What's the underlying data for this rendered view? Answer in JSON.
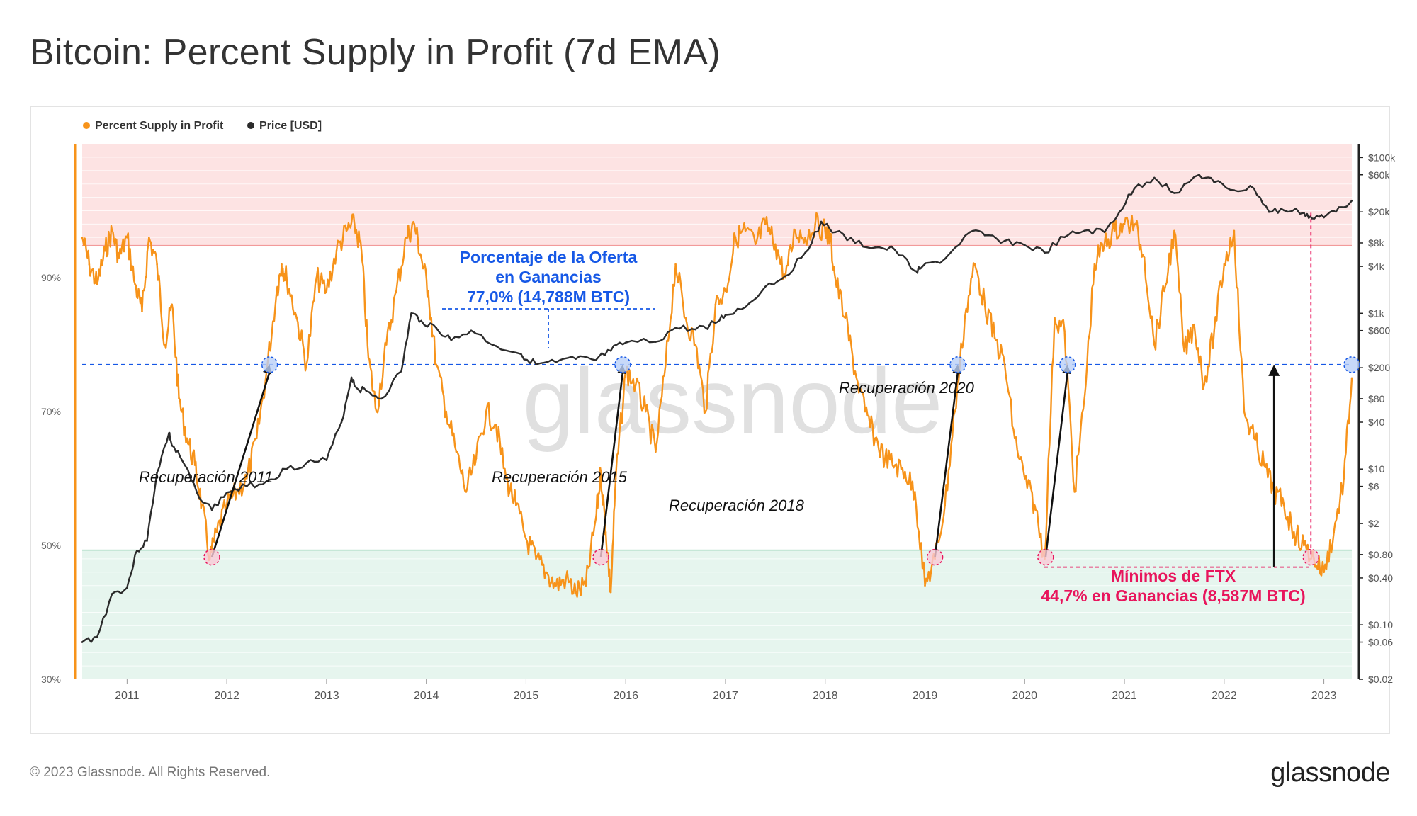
{
  "header": {
    "title": "Bitcoin: Percent Supply in Profit (7d EMA)"
  },
  "footer": {
    "copyright": "© 2023 Glassnode. All Rights Reserved.",
    "logo": "glassnode"
  },
  "watermark": "glassnode",
  "colors": {
    "supply": "#f7931a",
    "price": "#2b2b2b",
    "blue": "#1658e6",
    "pink": "#e8155c",
    "zone_high": "#fde3e3",
    "zone_low": "#e6f5ee"
  },
  "chart_data": {
    "type": "line",
    "title": "Bitcoin: Percent Supply in Profit (7d EMA)",
    "legend": [
      "Percent Supply in Profit",
      "Price [USD]"
    ],
    "legend_position": "top-left",
    "x_range": [
      2010.55,
      2023.28
    ],
    "x_ticks": [
      {
        "value": 2011,
        "label": "2011"
      },
      {
        "value": 2012,
        "label": "2012"
      },
      {
        "value": 2013,
        "label": "2013"
      },
      {
        "value": 2014,
        "label": "2014"
      },
      {
        "value": 2015,
        "label": "2015"
      },
      {
        "value": 2016,
        "label": "2016"
      },
      {
        "value": 2017,
        "label": "2017"
      },
      {
        "value": 2018,
        "label": "2018"
      },
      {
        "value": 2019,
        "label": "2019"
      },
      {
        "value": 2020,
        "label": "2020"
      },
      {
        "value": 2021,
        "label": "2021"
      },
      {
        "value": 2022,
        "label": "2022"
      },
      {
        "value": 2023,
        "label": "2023"
      }
    ],
    "left_axis": {
      "ylim": [
        30,
        110
      ],
      "ticks": [
        {
          "value": 90,
          "label": "90%"
        },
        {
          "value": 70,
          "label": "70%"
        },
        {
          "value": 50,
          "label": "50%"
        },
        {
          "value": 30,
          "label": "30%"
        }
      ]
    },
    "right_axis": {
      "scale": "log",
      "ylim": [
        0.02,
        150000
      ],
      "ticks": [
        {
          "value": 100000,
          "label": "$100k"
        },
        {
          "value": 60000,
          "label": "$60k"
        },
        {
          "value": 20000,
          "label": "$20k"
        },
        {
          "value": 8000,
          "label": "$8k"
        },
        {
          "value": 4000,
          "label": "$4k"
        },
        {
          "value": 1000,
          "label": "$1k"
        },
        {
          "value": 600,
          "label": "$600"
        },
        {
          "value": 200,
          "label": "$200"
        },
        {
          "value": 80,
          "label": "$80"
        },
        {
          "value": 40,
          "label": "$40"
        },
        {
          "value": 10,
          "label": "$10"
        },
        {
          "value": 6,
          "label": "$6"
        },
        {
          "value": 2,
          "label": "$2"
        },
        {
          "value": 0.8,
          "label": "$0.80"
        },
        {
          "value": 0.4,
          "label": "$0.40"
        },
        {
          "value": 0.1,
          "label": "$0.10"
        },
        {
          "value": 0.06,
          "label": "$0.06"
        },
        {
          "value": 0.02,
          "label": "$0.02"
        }
      ]
    },
    "zones": [
      {
        "name": "high",
        "from": 94.8,
        "to": 110
      },
      {
        "name": "low",
        "from": 30,
        "to": 49.3
      }
    ],
    "reference_line": {
      "value": 77.0,
      "label": "77,0%"
    },
    "series": [
      {
        "name": "Percent Supply in Profit",
        "axis": "left",
        "x": [
          2010.55,
          2010.62,
          2010.7,
          2010.78,
          2010.85,
          2010.92,
          2011.0,
          2011.08,
          2011.15,
          2011.22,
          2011.3,
          2011.38,
          2011.45,
          2011.52,
          2011.6,
          2011.68,
          2011.75,
          2011.83,
          2011.9,
          2012.0,
          2012.1,
          2012.2,
          2012.3,
          2012.4,
          2012.5,
          2012.55,
          2012.6,
          2012.7,
          2012.8,
          2012.9,
          2013.0,
          2013.1,
          2013.2,
          2013.28,
          2013.35,
          2013.42,
          2013.5,
          2013.6,
          2013.7,
          2013.8,
          2013.88,
          2013.95,
          2014.02,
          2014.1,
          2014.2,
          2014.3,
          2014.4,
          2014.5,
          2014.6,
          2014.7,
          2014.8,
          2014.9,
          2015.0,
          2015.1,
          2015.2,
          2015.3,
          2015.4,
          2015.5,
          2015.6,
          2015.7,
          2015.75,
          2015.8,
          2015.85,
          2015.9,
          2016.0,
          2016.1,
          2016.2,
          2016.3,
          2016.4,
          2016.5,
          2016.6,
          2016.7,
          2016.8,
          2016.9,
          2017.0,
          2017.1,
          2017.2,
          2017.3,
          2017.4,
          2017.5,
          2017.6,
          2017.7,
          2017.8,
          2017.9,
          2018.0,
          2018.05,
          2018.1,
          2018.2,
          2018.3,
          2018.4,
          2018.5,
          2018.6,
          2018.7,
          2018.8,
          2018.9,
          2019.0,
          2019.1,
          2019.2,
          2019.3,
          2019.4,
          2019.5,
          2019.6,
          2019.7,
          2019.8,
          2019.9,
          2020.0,
          2020.1,
          2020.2,
          2020.3,
          2020.4,
          2020.5,
          2020.6,
          2020.7,
          2020.8,
          2020.9,
          2021.0,
          2021.1,
          2021.2,
          2021.3,
          2021.4,
          2021.5,
          2021.6,
          2021.7,
          2021.8,
          2021.9,
          2022.0,
          2022.1,
          2022.2,
          2022.3,
          2022.4,
          2022.5,
          2022.6,
          2022.7,
          2022.8,
          2022.9,
          2023.0,
          2023.1,
          2023.2,
          2023.28
        ],
        "values": [
          96,
          92,
          89,
          94,
          97,
          93,
          96,
          89,
          85,
          96,
          92,
          80,
          86,
          72,
          66,
          62,
          56,
          48,
          52,
          56,
          58,
          60,
          66,
          76,
          88,
          92,
          90,
          84,
          77,
          90,
          88,
          94,
          97,
          98,
          94,
          78,
          70,
          80,
          88,
          96,
          98,
          93,
          88,
          77,
          70,
          64,
          58,
          63,
          70,
          68,
          60,
          56,
          51,
          48,
          46,
          44,
          45,
          43,
          44,
          54,
          61,
          52,
          43,
          60,
          76,
          74,
          70,
          64,
          77,
          92,
          84,
          80,
          70,
          86,
          88,
          96,
          97,
          95,
          98,
          95,
          90,
          97,
          96,
          98,
          97,
          96,
          90,
          84,
          76,
          70,
          66,
          63,
          62,
          61,
          58,
          44,
          48,
          56,
          70,
          84,
          92,
          86,
          81,
          77,
          66,
          60,
          56,
          48,
          84,
          82,
          58,
          72,
          92,
          95,
          97,
          98,
          98,
          93,
          80,
          88,
          97,
          79,
          83,
          74,
          82,
          92,
          97,
          70,
          66,
          62,
          58,
          56,
          52,
          50,
          48,
          46,
          52,
          60,
          75
        ],
        "min_point": {
          "x": 2022.87,
          "value": 44.7
        },
        "color": "#f7931a"
      },
      {
        "name": "Price [USD]",
        "axis": "right",
        "x": [
          2010.55,
          2010.7,
          2010.85,
          2011.0,
          2011.1,
          2011.2,
          2011.3,
          2011.42,
          2011.45,
          2011.55,
          2011.7,
          2011.85,
          2012.0,
          2012.2,
          2012.4,
          2012.6,
          2012.8,
          2013.0,
          2013.15,
          2013.25,
          2013.3,
          2013.4,
          2013.55,
          2013.75,
          2013.85,
          2013.95,
          2014.1,
          2014.25,
          2014.45,
          2014.7,
          2014.95,
          2015.1,
          2015.3,
          2015.5,
          2015.7,
          2015.85,
          2016.0,
          2016.3,
          2016.5,
          2016.7,
          2016.9,
          2017.0,
          2017.2,
          2017.4,
          2017.6,
          2017.8,
          2017.96,
          2018.1,
          2018.3,
          2018.5,
          2018.7,
          2018.9,
          2018.96,
          2019.2,
          2019.45,
          2019.6,
          2019.8,
          2020.0,
          2020.2,
          2020.4,
          2020.6,
          2020.8,
          2020.95,
          2021.1,
          2021.3,
          2021.5,
          2021.75,
          2021.9,
          2022.1,
          2022.3,
          2022.45,
          2022.6,
          2022.8,
          2022.88,
          2023.0,
          2023.15,
          2023.28
        ],
        "values": [
          0.06,
          0.07,
          0.25,
          0.3,
          0.9,
          1.2,
          9,
          29,
          20,
          13,
          5,
          3,
          5,
          6,
          7,
          10,
          12,
          13,
          40,
          150,
          110,
          100,
          80,
          180,
          1000,
          800,
          650,
          450,
          600,
          380,
          300,
          220,
          235,
          260,
          250,
          330,
          420,
          430,
          650,
          620,
          750,
          950,
          1200,
          2200,
          3000,
          6000,
          15000,
          11000,
          8000,
          7000,
          6500,
          3500,
          3800,
          5000,
          11000,
          10000,
          8500,
          7500,
          6000,
          9500,
          11500,
          11000,
          20000,
          40000,
          55000,
          35000,
          60000,
          48000,
          38000,
          40000,
          20000,
          21000,
          19500,
          16500,
          17000,
          23000,
          28000
        ],
        "color": "#2b2b2b"
      }
    ],
    "annotations": {
      "blue_label": [
        "Porcentaje de la Oferta",
        "en Ganancias",
        "77,0% (14,788M BTC)"
      ],
      "ftx_label": [
        "Mínimos de FTX",
        "44,7% en Ganancias (8,587M BTC)"
      ],
      "recoveries": [
        {
          "label": "Recuperación 2011",
          "from_x": 2011.85,
          "to_x": 2012.43
        },
        {
          "label": "Recuperación 2015",
          "from_x": 2015.75,
          "to_x": 2015.97
        },
        {
          "label": "Recuperación 2018",
          "from_x": 2019.1,
          "to_x": 2019.33
        },
        {
          "label": "Recuperación 2020",
          "from_x": 2020.21,
          "to_x": 2020.43
        }
      ],
      "ftx_arrow_x": 2022.5,
      "ftx_low_x": 2022.87,
      "end_marker_x": 2023.28
    }
  }
}
